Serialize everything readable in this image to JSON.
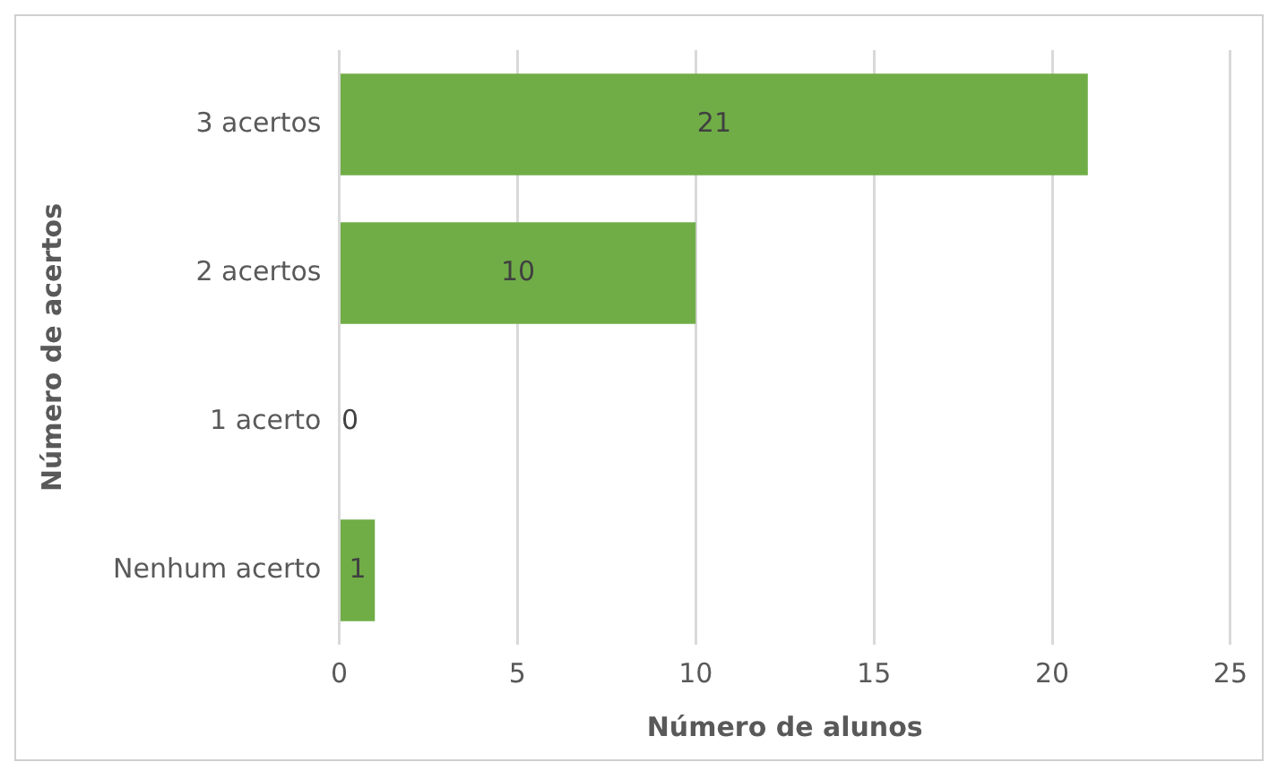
{
  "chart_data": {
    "type": "bar",
    "orientation": "horizontal",
    "xlabel": "Número de alunos",
    "ylabel": "Número de acertos",
    "categories": [
      "3 acertos",
      "2 acertos",
      "1 acerto",
      "Nenhum acerto"
    ],
    "values": [
      21,
      10,
      0,
      1
    ],
    "color": "#70ad47",
    "xlim": [
      0,
      25
    ],
    "xticks": [
      0,
      5,
      10,
      15,
      20,
      25
    ],
    "grid": "x",
    "data_labels": true,
    "legend": false
  }
}
